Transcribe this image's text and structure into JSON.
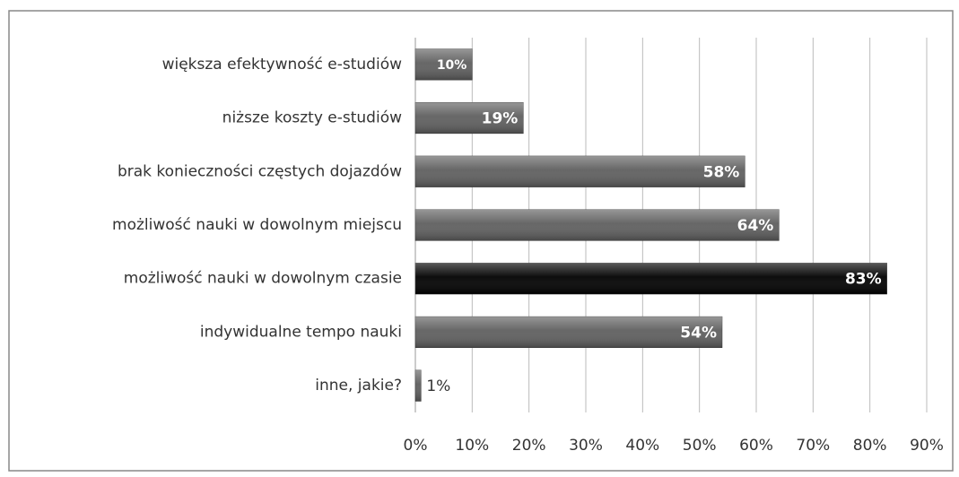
{
  "chart_data": {
    "type": "bar",
    "orientation": "horizontal",
    "categories": [
      "większa efektywność e-studiów",
      "niższe koszty e-studiów",
      "brak konieczności częstych dojazdów",
      "możliwość nauki w dowolnym miejscu",
      "możliwość nauki w dowolnym czasie",
      "indywidualne tempo nauki",
      "inne, jakie?"
    ],
    "values": [
      10,
      19,
      58,
      64,
      83,
      54,
      1
    ],
    "value_labels": [
      "10%",
      "19%",
      "58%",
      "64%",
      "83%",
      "54%",
      "1%"
    ],
    "colors": [
      "#5f5f5f",
      "#5f5f5f",
      "#5f5f5f",
      "#5f5f5f",
      "#000000",
      "#5f5f5f",
      "#5f5f5f"
    ],
    "xlim": [
      0,
      90
    ],
    "xticks": [
      {
        "value": 0,
        "label": "0%"
      },
      {
        "value": 10,
        "label": "10%"
      },
      {
        "value": 20,
        "label": "20%"
      },
      {
        "value": 30,
        "label": "30%"
      },
      {
        "value": 40,
        "label": "40%"
      },
      {
        "value": 50,
        "label": "50%"
      },
      {
        "value": 60,
        "label": "60%"
      },
      {
        "value": 70,
        "label": "70%"
      },
      {
        "value": 80,
        "label": "80%"
      },
      {
        "value": 90,
        "label": "90%"
      }
    ],
    "grid": true
  }
}
